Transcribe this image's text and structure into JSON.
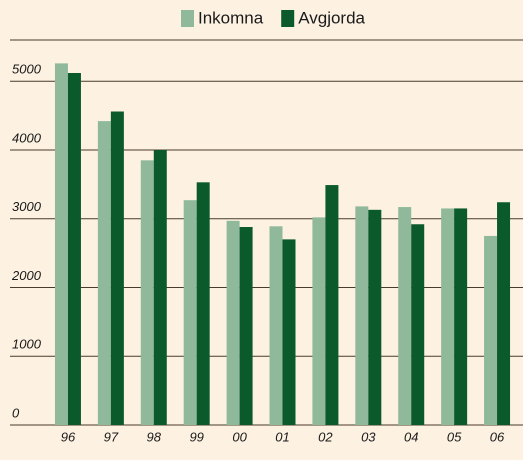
{
  "chart_data": {
    "type": "bar",
    "categories": [
      "96",
      "97",
      "98",
      "99",
      "00",
      "01",
      "02",
      "03",
      "04",
      "05",
      "06"
    ],
    "series": [
      {
        "name": "Inkomna",
        "color": "#8fb99a",
        "values": [
          5260,
          4420,
          3850,
          3270,
          2970,
          2890,
          3020,
          3180,
          3170,
          3150,
          2750
        ]
      },
      {
        "name": "Avgjorda",
        "color": "#0b5a2b",
        "values": [
          5120,
          4560,
          4000,
          3530,
          2880,
          2700,
          3490,
          3130,
          2920,
          3150,
          3240
        ]
      }
    ],
    "ylim": [
      0,
      5600
    ],
    "yticks": [
      0,
      1000,
      2000,
      3000,
      4000,
      5000
    ],
    "grid": true,
    "legend": "top"
  }
}
